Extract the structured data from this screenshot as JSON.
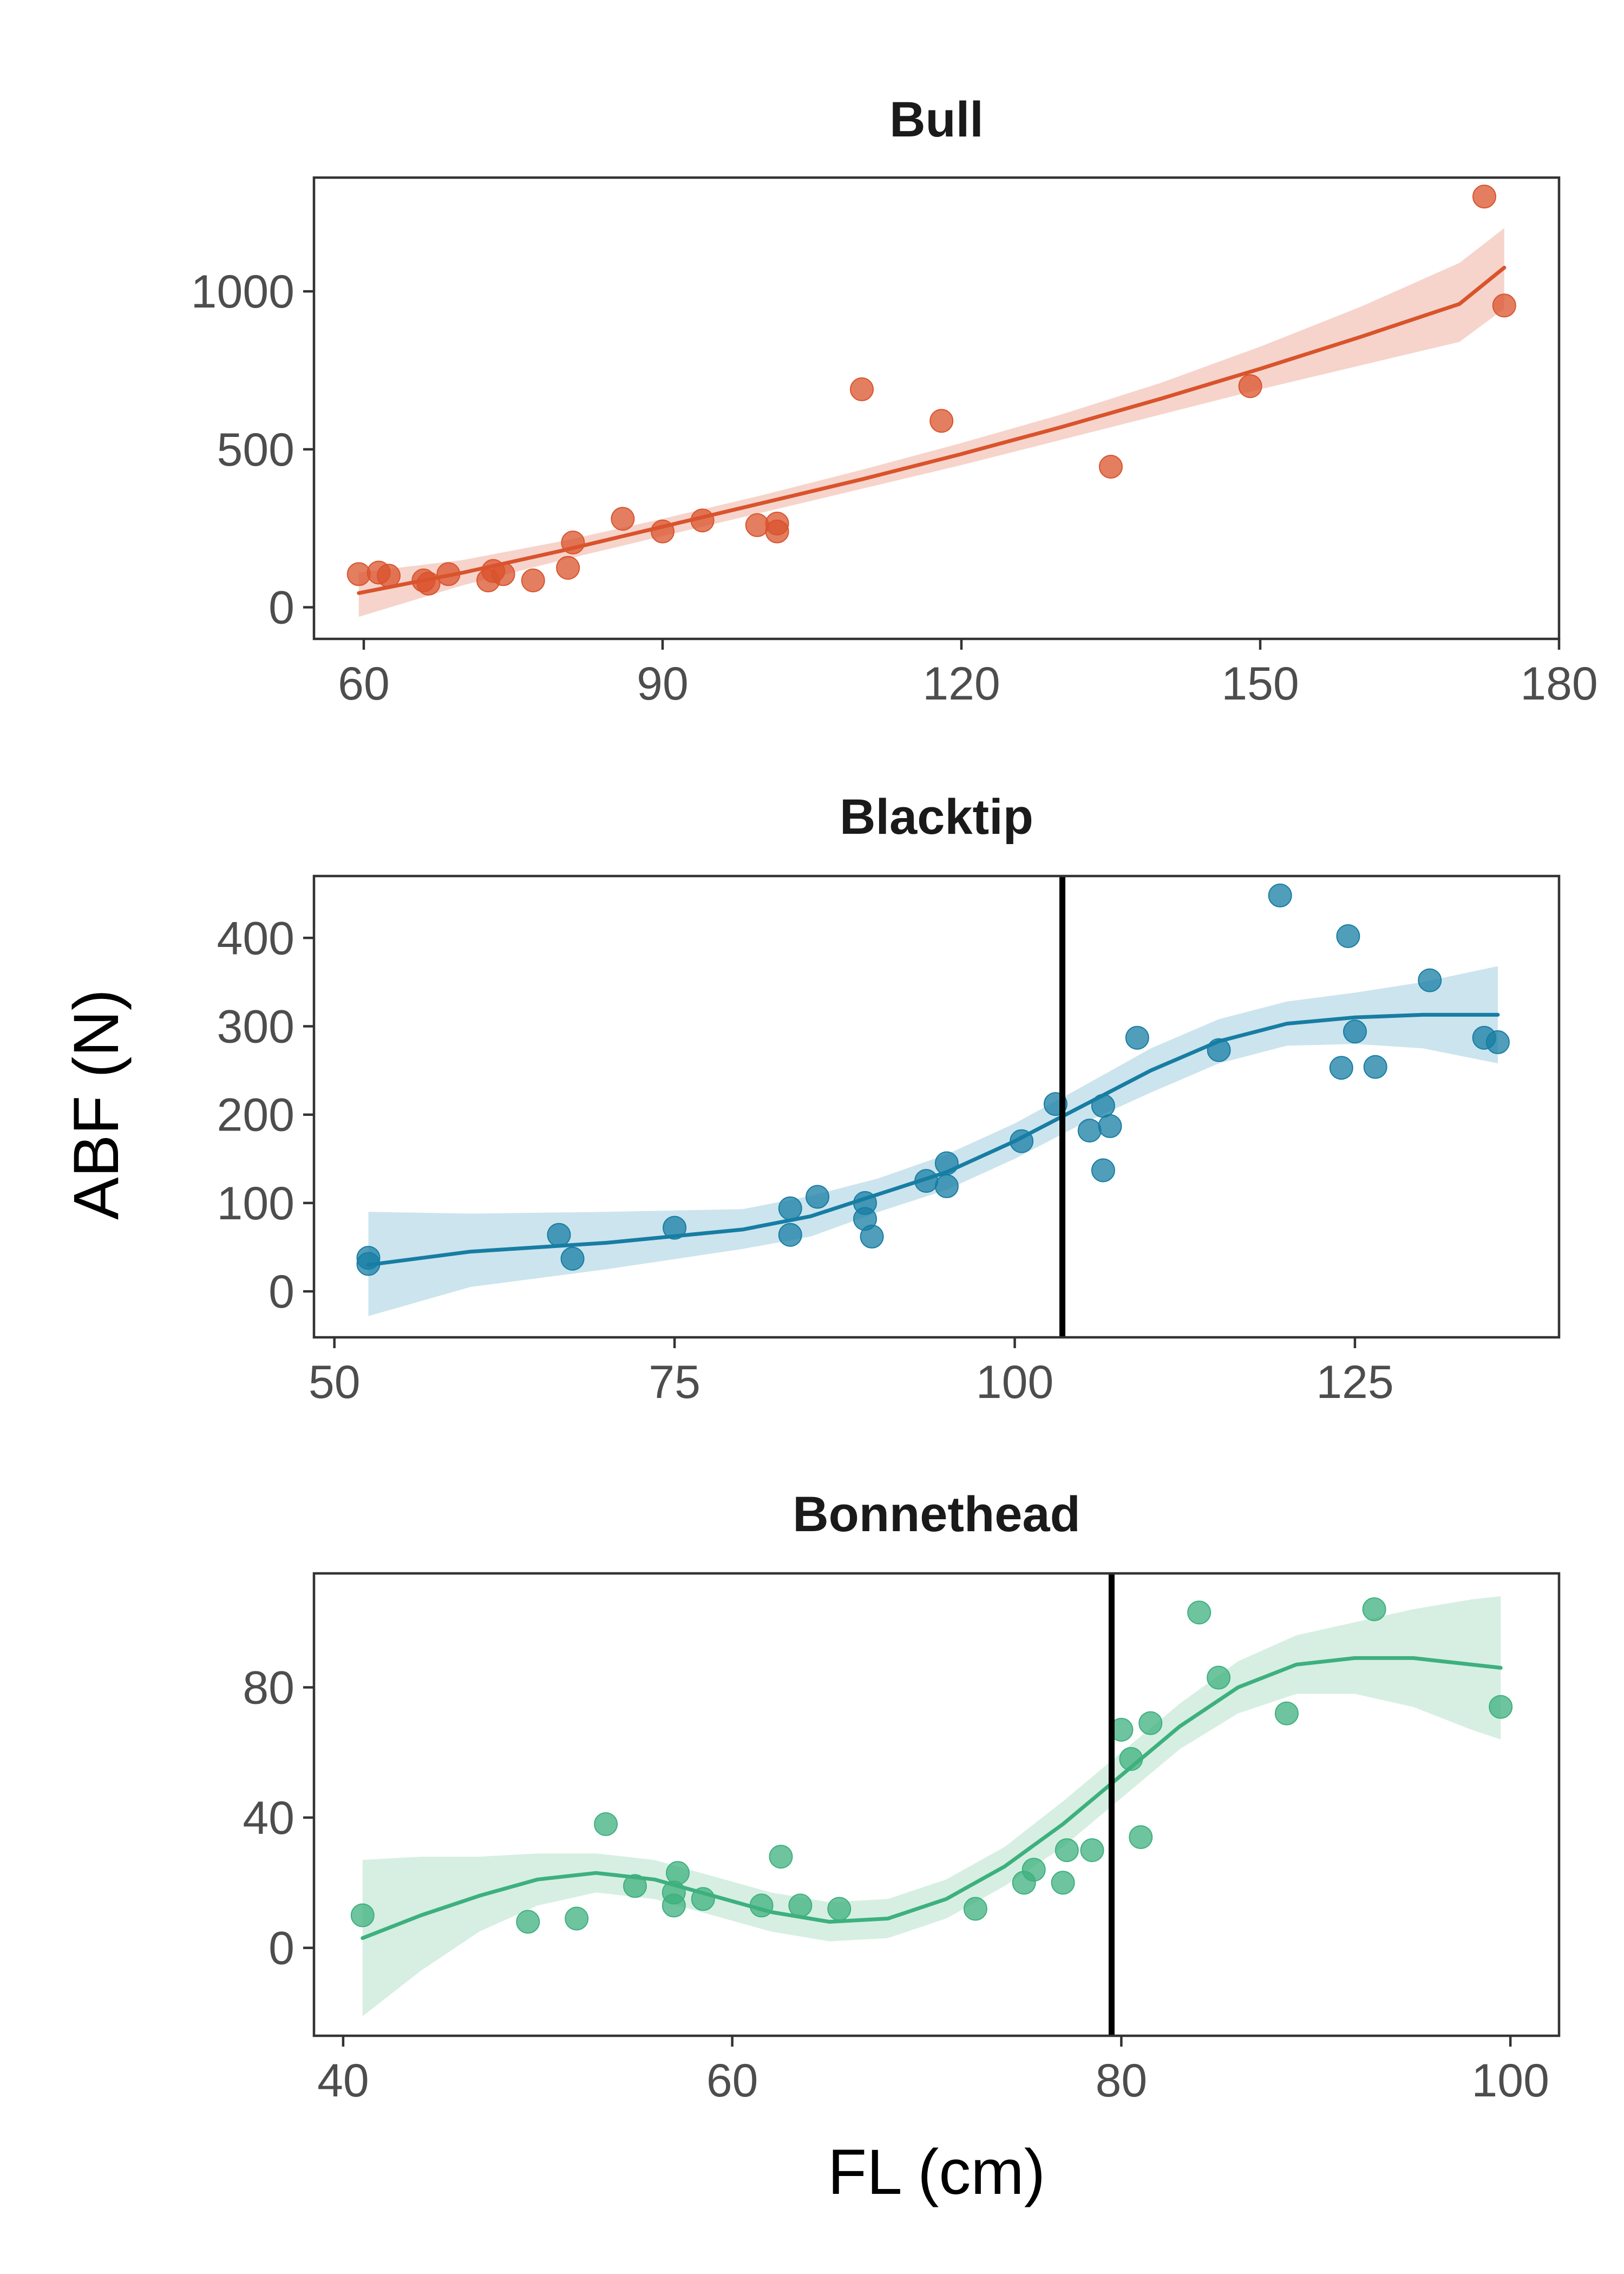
{
  "figure": {
    "ylabel": "ABF (N)",
    "xlabel": "FL (cm)"
  },
  "chart_data": [
    {
      "type": "scatter",
      "title": "Bull",
      "color": "#d9532c",
      "band_color": "#f5cfc5",
      "xlim": [
        55,
        180
      ],
      "ylim": [
        -100,
        1360
      ],
      "xticks": [
        60,
        90,
        120,
        150,
        180
      ],
      "yticks": [
        0,
        500,
        1000
      ],
      "vline": null,
      "points": [
        [
          59.5,
          105
        ],
        [
          61.5,
          110
        ],
        [
          62.5,
          100
        ],
        [
          66,
          85
        ],
        [
          66.5,
          75
        ],
        [
          68.5,
          105
        ],
        [
          72.5,
          85
        ],
        [
          73,
          115
        ],
        [
          74,
          105
        ],
        [
          77,
          85
        ],
        [
          80.5,
          125
        ],
        [
          81,
          205
        ],
        [
          86,
          280
        ],
        [
          90,
          240
        ],
        [
          94,
          275
        ],
        [
          99.5,
          260
        ],
        [
          101.5,
          240
        ],
        [
          101.5,
          265
        ],
        [
          110,
          690
        ],
        [
          118,
          590
        ],
        [
          135,
          445
        ],
        [
          149,
          700
        ],
        [
          172.5,
          1300
        ],
        [
          174.5,
          955
        ]
      ],
      "fit": [
        [
          59.5,
          45
        ],
        [
          70,
          110
        ],
        [
          80,
          180
        ],
        [
          90,
          255
        ],
        [
          100,
          330
        ],
        [
          110,
          405
        ],
        [
          120,
          485
        ],
        [
          130,
          570
        ],
        [
          140,
          660
        ],
        [
          150,
          755
        ],
        [
          160,
          855
        ],
        [
          170,
          960
        ],
        [
          174.5,
          1075
        ]
      ],
      "band_upper": [
        [
          59.5,
          110
        ],
        [
          70,
          150
        ],
        [
          80,
          210
        ],
        [
          90,
          280
        ],
        [
          100,
          355
        ],
        [
          110,
          435
        ],
        [
          120,
          520
        ],
        [
          130,
          610
        ],
        [
          140,
          710
        ],
        [
          150,
          825
        ],
        [
          160,
          950
        ],
        [
          170,
          1090
        ],
        [
          174.5,
          1200
        ]
      ],
      "band_lower": [
        [
          59.5,
          -30
        ],
        [
          70,
          70
        ],
        [
          80,
          150
        ],
        [
          90,
          225
        ],
        [
          100,
          300
        ],
        [
          110,
          375
        ],
        [
          120,
          450
        ],
        [
          130,
          530
        ],
        [
          140,
          610
        ],
        [
          150,
          690
        ],
        [
          160,
          765
        ],
        [
          170,
          840
        ],
        [
          174.5,
          945
        ]
      ]
    },
    {
      "type": "scatter",
      "title": "Blacktip",
      "color": "#177da3",
      "band_color": "#c6e1eb",
      "xlim": [
        48.5,
        140
      ],
      "ylim": [
        -52,
        470
      ],
      "xticks": [
        50,
        75,
        100,
        125
      ],
      "yticks": [
        0,
        100,
        200,
        300,
        400
      ],
      "vline": 103.5,
      "points": [
        [
          52.5,
          38
        ],
        [
          52.5,
          31
        ],
        [
          66.5,
          64
        ],
        [
          67.5,
          37
        ],
        [
          75,
          72
        ],
        [
          83.5,
          94
        ],
        [
          83.5,
          64
        ],
        [
          85.5,
          107
        ],
        [
          89,
          100
        ],
        [
          89,
          82
        ],
        [
          89.5,
          62
        ],
        [
          93.5,
          125
        ],
        [
          95,
          119
        ],
        [
          95,
          145
        ],
        [
          100.5,
          170
        ],
        [
          103,
          212
        ],
        [
          105.5,
          182
        ],
        [
          106.5,
          137
        ],
        [
          106.5,
          210
        ],
        [
          107,
          187
        ],
        [
          109,
          287
        ],
        [
          115,
          273
        ],
        [
          119.5,
          448
        ],
        [
          124,
          253
        ],
        [
          124.5,
          402
        ],
        [
          125,
          294
        ],
        [
          126.5,
          254
        ],
        [
          130.5,
          352
        ],
        [
          134.5,
          287
        ],
        [
          135.5,
          282
        ]
      ],
      "fit": [
        [
          52.5,
          30
        ],
        [
          60,
          45
        ],
        [
          70,
          55
        ],
        [
          80,
          70
        ],
        [
          85,
          85
        ],
        [
          90,
          110
        ],
        [
          95,
          135
        ],
        [
          100,
          170
        ],
        [
          105,
          210
        ],
        [
          110,
          250
        ],
        [
          115,
          283
        ],
        [
          120,
          303
        ],
        [
          125,
          310
        ],
        [
          130,
          313
        ],
        [
          135.5,
          313
        ]
      ],
      "band_upper": [
        [
          52.5,
          90
        ],
        [
          60,
          88
        ],
        [
          70,
          90
        ],
        [
          80,
          93
        ],
        [
          85,
          108
        ],
        [
          90,
          128
        ],
        [
          95,
          155
        ],
        [
          100,
          190
        ],
        [
          105,
          232
        ],
        [
          110,
          275
        ],
        [
          115,
          308
        ],
        [
          120,
          328
        ],
        [
          125,
          338
        ],
        [
          130,
          350
        ],
        [
          135.5,
          368
        ]
      ],
      "band_lower": [
        [
          52.5,
          -28
        ],
        [
          60,
          5
        ],
        [
          70,
          25
        ],
        [
          80,
          48
        ],
        [
          85,
          62
        ],
        [
          90,
          90
        ],
        [
          95,
          115
        ],
        [
          100,
          150
        ],
        [
          105,
          190
        ],
        [
          110,
          225
        ],
        [
          115,
          258
        ],
        [
          120,
          278
        ],
        [
          125,
          280
        ],
        [
          130,
          275
        ],
        [
          135.5,
          258
        ]
      ]
    },
    {
      "type": "scatter",
      "title": "Bonnethead",
      "color": "#3db07e",
      "band_color": "#d1eddf",
      "xlim": [
        38.5,
        102.5
      ],
      "ylim": [
        -27,
        115
      ],
      "xticks": [
        40,
        60,
        80,
        100
      ],
      "yticks": [
        0,
        40,
        80
      ],
      "vline": 79.5,
      "points": [
        [
          41,
          10
        ],
        [
          49.5,
          8
        ],
        [
          52,
          9
        ],
        [
          53.5,
          38
        ],
        [
          55,
          19
        ],
        [
          57,
          13
        ],
        [
          57,
          17
        ],
        [
          57.2,
          23
        ],
        [
          58.5,
          15
        ],
        [
          61.5,
          13
        ],
        [
          62.5,
          28
        ],
        [
          63.5,
          13
        ],
        [
          65.5,
          12
        ],
        [
          72.5,
          12
        ],
        [
          75,
          20
        ],
        [
          75.5,
          24
        ],
        [
          77,
          20
        ],
        [
          77.2,
          30
        ],
        [
          78.5,
          30
        ],
        [
          80,
          67
        ],
        [
          80.5,
          58
        ],
        [
          81,
          34
        ],
        [
          81.5,
          69
        ],
        [
          84,
          103
        ],
        [
          85,
          83
        ],
        [
          88.5,
          72
        ],
        [
          93,
          104
        ],
        [
          99.5,
          74
        ]
      ],
      "fit": [
        [
          41,
          3
        ],
        [
          44,
          10
        ],
        [
          47,
          16
        ],
        [
          50,
          21
        ],
        [
          53,
          23
        ],
        [
          56,
          21
        ],
        [
          59,
          16
        ],
        [
          62,
          11
        ],
        [
          65,
          8
        ],
        [
          68,
          9
        ],
        [
          71,
          15
        ],
        [
          74,
          25
        ],
        [
          77,
          38
        ],
        [
          80,
          53
        ],
        [
          83,
          68
        ],
        [
          86,
          80
        ],
        [
          89,
          87
        ],
        [
          92,
          89
        ],
        [
          95,
          89
        ],
        [
          98,
          87
        ],
        [
          99.5,
          86
        ]
      ],
      "band_upper": [
        [
          41,
          27
        ],
        [
          44,
          28
        ],
        [
          47,
          28
        ],
        [
          50,
          29
        ],
        [
          53,
          29
        ],
        [
          56,
          27
        ],
        [
          59,
          22
        ],
        [
          62,
          17
        ],
        [
          65,
          14
        ],
        [
          68,
          15
        ],
        [
          71,
          21
        ],
        [
          74,
          31
        ],
        [
          77,
          45
        ],
        [
          80,
          60
        ],
        [
          83,
          75
        ],
        [
          86,
          88
        ],
        [
          89,
          96
        ],
        [
          92,
          100
        ],
        [
          95,
          104
        ],
        [
          98,
          107
        ],
        [
          99.5,
          108
        ]
      ],
      "band_lower": [
        [
          41,
          -21
        ],
        [
          44,
          -7
        ],
        [
          47,
          5
        ],
        [
          50,
          13
        ],
        [
          53,
          17
        ],
        [
          56,
          15
        ],
        [
          59,
          10
        ],
        [
          62,
          5
        ],
        [
          65,
          2
        ],
        [
          68,
          3
        ],
        [
          71,
          9
        ],
        [
          74,
          19
        ],
        [
          77,
          31
        ],
        [
          80,
          46
        ],
        [
          83,
          61
        ],
        [
          86,
          72
        ],
        [
          89,
          78
        ],
        [
          92,
          78
        ],
        [
          95,
          74
        ],
        [
          98,
          67
        ],
        [
          99.5,
          64
        ]
      ]
    }
  ]
}
